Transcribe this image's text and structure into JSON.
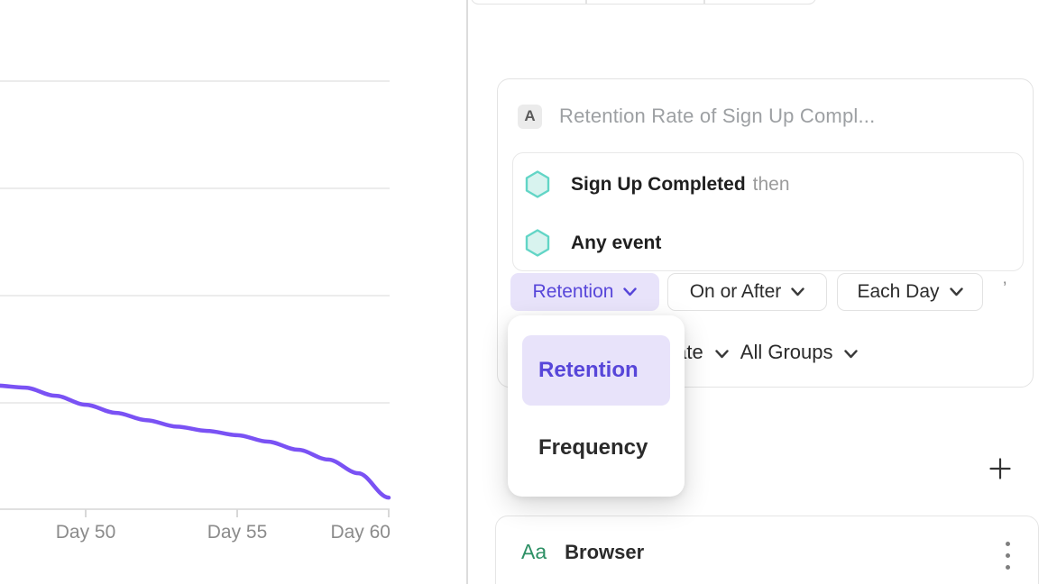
{
  "chart_data": {
    "type": "line",
    "title": "",
    "xlabel": "",
    "ylabel": "",
    "ylim": [
      0,
      100
    ],
    "grid": true,
    "gridline_values": [
      100,
      75,
      50,
      25,
      0
    ],
    "x_ticks": [
      {
        "day": 50,
        "label": "Day 50"
      },
      {
        "day": 55,
        "label": "Day 55"
      },
      {
        "day": 60,
        "label": "Day 60"
      }
    ],
    "series": [
      {
        "name": "Retention",
        "color": "#7a52f4",
        "points": [
          {
            "day": 47,
            "pct": 28.9
          },
          {
            "day": 48,
            "pct": 28.4
          },
          {
            "day": 49,
            "pct": 26.5
          },
          {
            "day": 50,
            "pct": 24.4
          },
          {
            "day": 51,
            "pct": 22.5
          },
          {
            "day": 52,
            "pct": 20.8
          },
          {
            "day": 53,
            "pct": 19.3
          },
          {
            "day": 54,
            "pct": 18.3
          },
          {
            "day": 55,
            "pct": 17.3
          },
          {
            "day": 56,
            "pct": 15.8
          },
          {
            "day": 57,
            "pct": 13.9
          },
          {
            "day": 58,
            "pct": 11.6
          },
          {
            "day": 59,
            "pct": 8.4
          },
          {
            "day": 60,
            "pct": 2.7
          }
        ]
      }
    ]
  },
  "query_card": {
    "badge": "A",
    "title_placeholder": "Retention Rate of Sign Up Compl...",
    "events": [
      {
        "name": "Sign Up Completed",
        "suffix": "then"
      },
      {
        "name": "Any event",
        "suffix": ""
      }
    ],
    "controls": {
      "measure": "Retention",
      "start": "On or After",
      "interval": "Each Day"
    },
    "clipped_fragment": "’",
    "measured_as": "Retention Rate",
    "group_by": "All Groups"
  },
  "dropdown": {
    "options": [
      {
        "label": "Retention",
        "selected": true
      },
      {
        "label": "Frequency",
        "selected": false
      }
    ]
  },
  "group_card": {
    "type_icon": "Aa",
    "name": "Browser"
  },
  "colors": {
    "accent_purple": "#5746d9",
    "accent_lavender": "#e8e3fa",
    "line_purple": "#7a52f4",
    "hexagon_stroke": "#62d5c6",
    "hexagon_fill": "#d8f3ef",
    "green_property": "#2d9065",
    "border_gray": "#e3e3e3",
    "text_gray": "#9da0a3"
  }
}
